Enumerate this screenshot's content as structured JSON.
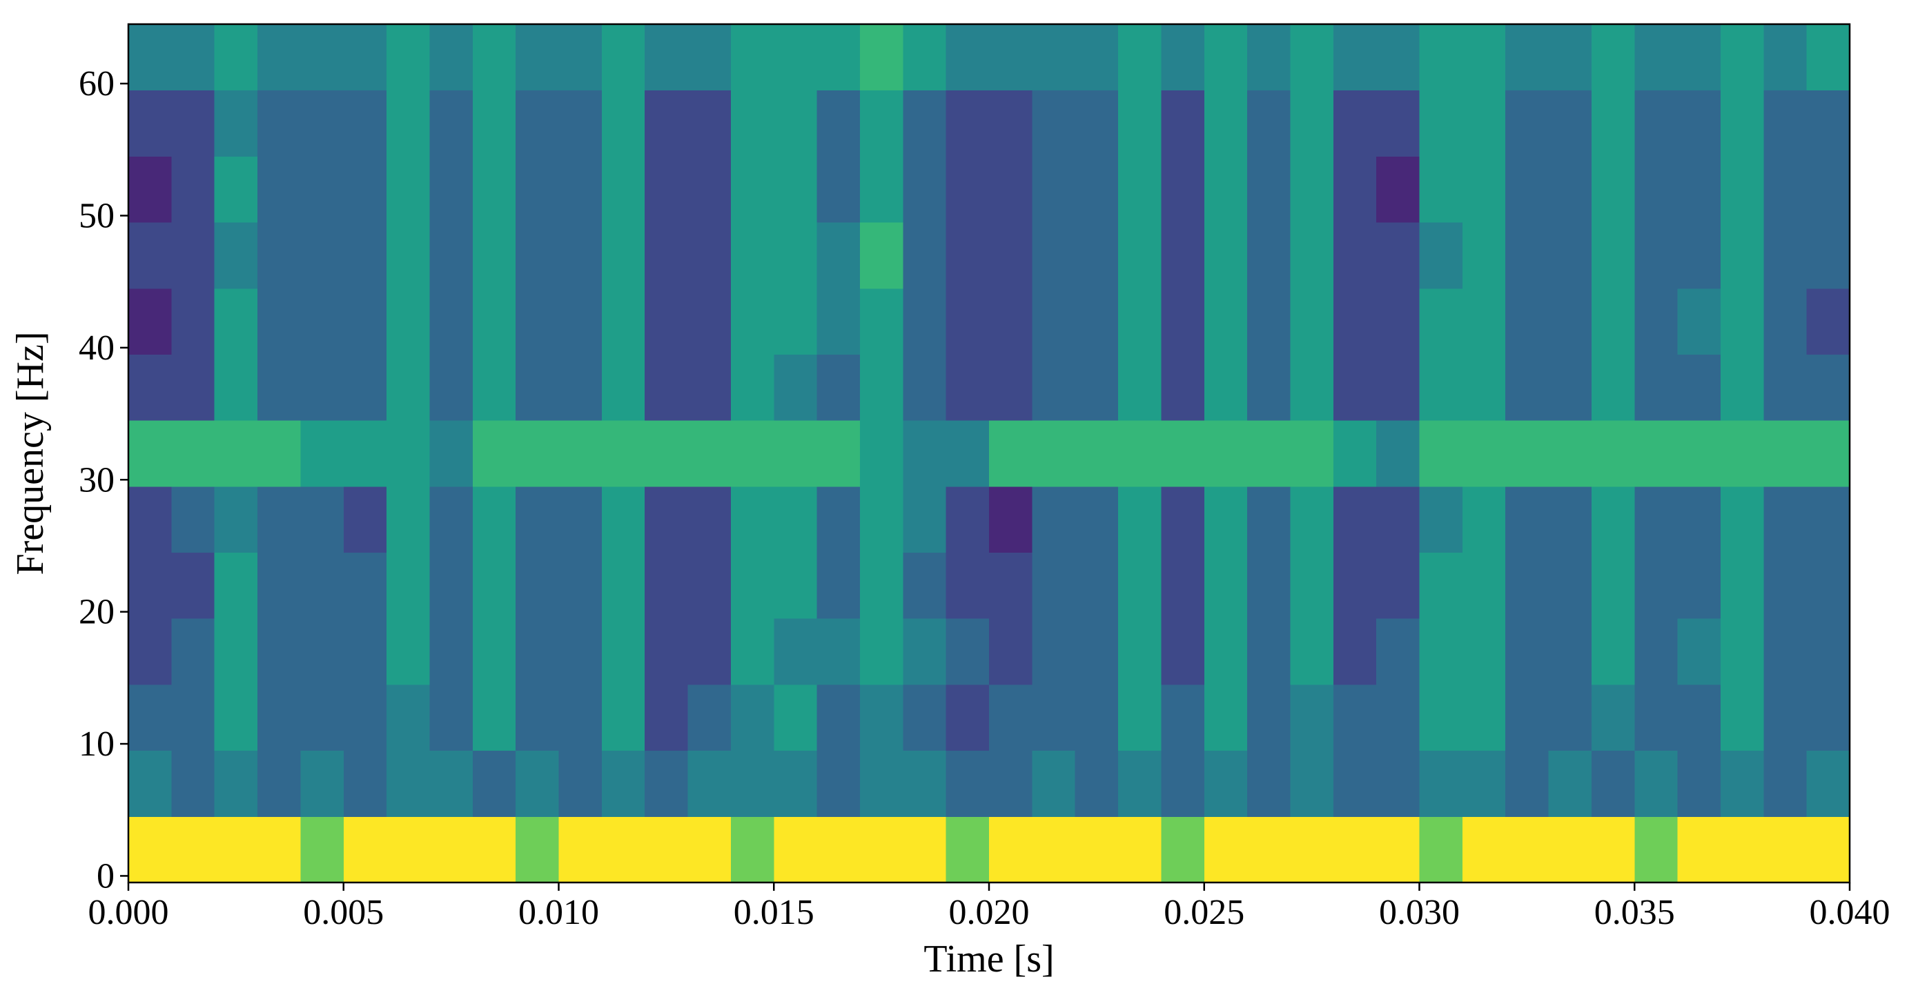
{
  "chart_data": {
    "type": "heatmap",
    "colormap": "viridis",
    "zlim": [
      0,
      9
    ],
    "xlabel": "Time [s]",
    "ylabel": "Frequency [Hz]",
    "xlim": [
      0,
      0.04
    ],
    "ylim": [
      -0.5,
      64.5
    ],
    "xticks": [
      {
        "value": 0,
        "label": "0.000"
      },
      {
        "value": 0.005,
        "label": "0.005"
      },
      {
        "value": 0.01,
        "label": "0.010"
      },
      {
        "value": 0.015,
        "label": "0.015"
      },
      {
        "value": 0.02,
        "label": "0.020"
      },
      {
        "value": 0.025,
        "label": "0.025"
      },
      {
        "value": 0.03,
        "label": "0.030"
      },
      {
        "value": 0.035,
        "label": "0.035"
      },
      {
        "value": 0.04,
        "label": "0.040"
      }
    ],
    "yticks": [
      0,
      10,
      20,
      30,
      40,
      50,
      60
    ],
    "x": [
      0.0005,
      0.0015,
      0.0025,
      0.0035,
      0.0045,
      0.0055,
      0.0065,
      0.0075,
      0.0085,
      0.0095,
      0.0105,
      0.0115,
      0.0125,
      0.0135,
      0.0145,
      0.0155,
      0.0165,
      0.0175,
      0.0185,
      0.0195,
      0.0205,
      0.0215,
      0.0225,
      0.0235,
      0.0245,
      0.0255,
      0.0265,
      0.0275,
      0.0285,
      0.0295,
      0.0305,
      0.0315,
      0.0325,
      0.0335,
      0.0345,
      0.0355,
      0.0365,
      0.0375,
      0.0385,
      0.0395
    ],
    "y": [
      2,
      7,
      12,
      17,
      22,
      27,
      32,
      37,
      42,
      47,
      52,
      57,
      62
    ],
    "values": [
      [
        9,
        9,
        9,
        9,
        7,
        9,
        9,
        9,
        9,
        7,
        9,
        9,
        9,
        9,
        7,
        9,
        9,
        9,
        9,
        7,
        9,
        9,
        9,
        9,
        7,
        9,
        9,
        9,
        9,
        9,
        7,
        9,
        9,
        9,
        9,
        7,
        9,
        9,
        9,
        9
      ],
      [
        4,
        3,
        4,
        3,
        4,
        3,
        4,
        4,
        3,
        4,
        3,
        4,
        3,
        4,
        4,
        4,
        3,
        4,
        4,
        3,
        3,
        4,
        3,
        4,
        3,
        4,
        3,
        4,
        3,
        3,
        4,
        4,
        3,
        4,
        3,
        4,
        3,
        4,
        3,
        4
      ],
      [
        3,
        3,
        5,
        3,
        3,
        3,
        4,
        3,
        5,
        3,
        3,
        5,
        2,
        3,
        4,
        5,
        3,
        4,
        3,
        2,
        3,
        3,
        3,
        5,
        3,
        5,
        3,
        4,
        3,
        3,
        5,
        5,
        3,
        3,
        4,
        3,
        3,
        5,
        3,
        3
      ],
      [
        2,
        3,
        5,
        3,
        3,
        3,
        5,
        3,
        5,
        3,
        3,
        5,
        2,
        2,
        5,
        4,
        4,
        5,
        4,
        3,
        2,
        3,
        3,
        5,
        2,
        5,
        3,
        5,
        2,
        3,
        5,
        5,
        3,
        3,
        5,
        3,
        4,
        5,
        3,
        3
      ],
      [
        2,
        2,
        5,
        3,
        3,
        3,
        5,
        3,
        5,
        3,
        3,
        5,
        2,
        2,
        5,
        5,
        3,
        5,
        3,
        2,
        2,
        3,
        3,
        5,
        2,
        5,
        3,
        5,
        2,
        2,
        5,
        5,
        3,
        3,
        5,
        3,
        3,
        5,
        3,
        3
      ],
      [
        2,
        3,
        4,
        3,
        3,
        2,
        5,
        3,
        5,
        3,
        3,
        5,
        2,
        2,
        5,
        5,
        3,
        5,
        4,
        2,
        1,
        3,
        3,
        5,
        2,
        5,
        3,
        5,
        2,
        2,
        4,
        5,
        3,
        3,
        5,
        3,
        3,
        5,
        3,
        3
      ],
      [
        6,
        6,
        6,
        6,
        5,
        5,
        5,
        4,
        6,
        6,
        6,
        6,
        6,
        6,
        6,
        6,
        6,
        5,
        4,
        4,
        6,
        6,
        6,
        6,
        6,
        6,
        6,
        6,
        5,
        4,
        6,
        6,
        6,
        6,
        6,
        6,
        6,
        6,
        6,
        6
      ],
      [
        2,
        2,
        5,
        3,
        3,
        3,
        5,
        3,
        5,
        3,
        3,
        5,
        2,
        2,
        5,
        4,
        3,
        5,
        3,
        2,
        2,
        3,
        3,
        5,
        2,
        5,
        3,
        5,
        2,
        2,
        5,
        5,
        3,
        3,
        5,
        3,
        3,
        5,
        3,
        3
      ],
      [
        1,
        2,
        5,
        3,
        3,
        3,
        5,
        3,
        5,
        3,
        3,
        5,
        2,
        2,
        5,
        5,
        4,
        5,
        3,
        2,
        2,
        3,
        3,
        5,
        2,
        5,
        3,
        5,
        2,
        2,
        5,
        5,
        3,
        3,
        5,
        3,
        4,
        5,
        3,
        2
      ],
      [
        2,
        2,
        4,
        3,
        3,
        3,
        5,
        3,
        5,
        3,
        3,
        5,
        2,
        2,
        5,
        5,
        4,
        6,
        3,
        2,
        2,
        3,
        3,
        5,
        2,
        5,
        3,
        5,
        2,
        2,
        4,
        5,
        3,
        3,
        5,
        3,
        3,
        5,
        3,
        3
      ],
      [
        1,
        2,
        5,
        3,
        3,
        3,
        5,
        3,
        5,
        3,
        3,
        5,
        2,
        2,
        5,
        5,
        3,
        5,
        3,
        2,
        2,
        3,
        3,
        5,
        2,
        5,
        3,
        5,
        2,
        1,
        5,
        5,
        3,
        3,
        5,
        3,
        3,
        5,
        3,
        3
      ],
      [
        2,
        2,
        4,
        3,
        3,
        3,
        5,
        3,
        5,
        3,
        3,
        5,
        2,
        2,
        5,
        5,
        3,
        5,
        3,
        2,
        2,
        3,
        3,
        5,
        2,
        5,
        3,
        5,
        2,
        2,
        5,
        5,
        3,
        3,
        5,
        3,
        3,
        5,
        3,
        3
      ],
      [
        4,
        4,
        5,
        4,
        4,
        4,
        5,
        4,
        5,
        4,
        4,
        5,
        4,
        4,
        5,
        5,
        5,
        6,
        5,
        4,
        4,
        4,
        4,
        5,
        4,
        5,
        4,
        5,
        4,
        4,
        5,
        5,
        4,
        4,
        5,
        4,
        4,
        5,
        4,
        5
      ]
    ]
  }
}
